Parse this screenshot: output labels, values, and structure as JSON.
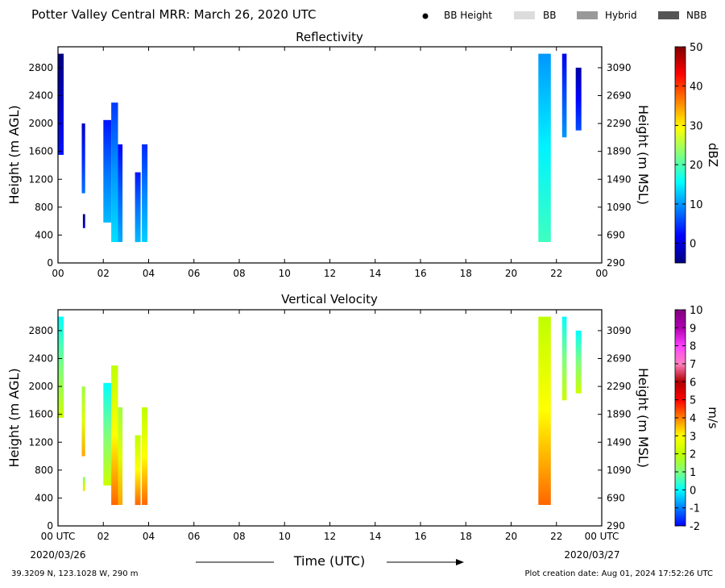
{
  "header": {
    "title": "Potter Valley Central MRR:  March 26, 2020 UTC",
    "legend": {
      "bb_height": "BB Height",
      "bb": "BB",
      "hybrid": "Hybrid",
      "nbb": "NBB",
      "colors": {
        "bb": "#dcdcdc",
        "hybrid": "#999999",
        "nbb": "#555555"
      }
    }
  },
  "footer": {
    "location": "39.3209 N, 123.1028 W, 290 m",
    "creation": "Plot creation date: Aug 01, 2024 17:52:26 UTC",
    "xlabel": "Time (UTC)"
  },
  "chart_data": [
    {
      "type": "heatmap",
      "title": "Reflectivity",
      "xlabel": "Time (UTC)",
      "ylabel": "Height (m AGL)",
      "ylabel_right": "Height (m MSL)",
      "xlim": [
        0,
        24
      ],
      "ylim": [
        0,
        3100
      ],
      "x_ticks": [
        "00",
        "02",
        "04",
        "06",
        "08",
        "10",
        "12",
        "14",
        "16",
        "18",
        "20",
        "22",
        "00"
      ],
      "y_ticks": [
        0,
        400,
        800,
        1200,
        1600,
        2000,
        2400,
        2800
      ],
      "y_ticks_right": [
        290,
        690,
        1090,
        1490,
        1890,
        2290,
        2690,
        3090
      ],
      "colorbar": {
        "label": "dBZ",
        "range": [
          -5,
          50
        ],
        "ticks": [
          0,
          10,
          20,
          30,
          40,
          50
        ],
        "colors": [
          "#00007f",
          "#0000ff",
          "#0080ff",
          "#00ffff",
          "#7fff7f",
          "#ffff00",
          "#ff8000",
          "#ff0000",
          "#7f0000"
        ]
      },
      "echoes": [
        {
          "t0": 0.0,
          "t1": 0.25,
          "h0": 1550,
          "h1": 3000,
          "value": -1
        },
        {
          "t0": 1.05,
          "t1": 1.2,
          "h0": 1000,
          "h1": 2000,
          "value": 4
        },
        {
          "t0": 1.1,
          "t1": 1.2,
          "h0": 500,
          "h1": 700,
          "value": -3
        },
        {
          "t0": 2.0,
          "t1": 2.35,
          "h0": 580,
          "h1": 2050,
          "value": 8
        },
        {
          "t0": 2.35,
          "t1": 2.65,
          "h0": 300,
          "h1": 2300,
          "value": 10
        },
        {
          "t0": 2.65,
          "t1": 2.85,
          "h0": 300,
          "h1": 1700,
          "value": 7
        },
        {
          "t0": 3.4,
          "t1": 3.65,
          "h0": 300,
          "h1": 1300,
          "value": 8
        },
        {
          "t0": 3.7,
          "t1": 3.95,
          "h0": 300,
          "h1": 1700,
          "value": 9
        },
        {
          "t0": 21.2,
          "t1": 21.75,
          "h0": 300,
          "h1": 3000,
          "value": 15
        },
        {
          "t0": 22.25,
          "t1": 22.45,
          "h0": 1800,
          "h1": 3000,
          "value": 6
        },
        {
          "t0": 22.85,
          "t1": 23.1,
          "h0": 1900,
          "h1": 2800,
          "value": 2
        }
      ]
    },
    {
      "type": "heatmap",
      "title": "Vertical Velocity",
      "xlabel": "Time (UTC)",
      "ylabel": "Height (m AGL)",
      "ylabel_right": "Height (m MSL)",
      "xlim": [
        0,
        24
      ],
      "ylim": [
        0,
        3100
      ],
      "x_ticks": [
        "00 UTC",
        "02",
        "04",
        "06",
        "08",
        "10",
        "12",
        "14",
        "16",
        "18",
        "20",
        "22",
        "00 UTC"
      ],
      "x_dates": [
        "2020/03/26",
        "2020/03/27"
      ],
      "y_ticks": [
        0,
        400,
        800,
        1200,
        1600,
        2000,
        2400,
        2800
      ],
      "y_ticks_right": [
        290,
        690,
        1090,
        1490,
        1890,
        2290,
        2690,
        3090
      ],
      "colorbar": {
        "label": "m/s",
        "range": [
          -2,
          10
        ],
        "ticks": [
          -2,
          -1,
          0,
          1,
          2,
          3,
          4,
          5,
          6,
          7,
          8,
          9,
          10
        ],
        "colors": [
          "#0000ff",
          "#0080ff",
          "#00ffff",
          "#7fff7f",
          "#bfff00",
          "#ffff00",
          "#ff8000",
          "#ff0000",
          "#b00000",
          "#ff80c0",
          "#ff40ff",
          "#b000b0",
          "#7f007f"
        ]
      },
      "echoes": [
        {
          "t0": 0.0,
          "t1": 0.25,
          "h0": 1550,
          "h1": 3000,
          "value": 1
        },
        {
          "t0": 1.05,
          "t1": 1.2,
          "h0": 1000,
          "h1": 2000,
          "value": 2.5
        },
        {
          "t0": 1.1,
          "t1": 1.2,
          "h0": 500,
          "h1": 700,
          "value": 2
        },
        {
          "t0": 2.0,
          "t1": 2.35,
          "h0": 580,
          "h1": 2050,
          "value": 1
        },
        {
          "t0": 2.35,
          "t1": 2.65,
          "h0": 300,
          "h1": 2300,
          "value": 3
        },
        {
          "t0": 2.65,
          "t1": 2.85,
          "h0": 300,
          "h1": 1700,
          "value": 2.5
        },
        {
          "t0": 3.4,
          "t1": 3.65,
          "h0": 300,
          "h1": 1300,
          "value": 3
        },
        {
          "t0": 3.7,
          "t1": 3.95,
          "h0": 300,
          "h1": 1700,
          "value": 3
        },
        {
          "t0": 21.2,
          "t1": 21.75,
          "h0": 300,
          "h1": 3000,
          "value": 3
        },
        {
          "t0": 22.25,
          "t1": 22.45,
          "h0": 1800,
          "h1": 3000,
          "value": 1
        },
        {
          "t0": 22.85,
          "t1": 23.1,
          "h0": 1900,
          "h1": 2800,
          "value": 1
        }
      ]
    }
  ]
}
